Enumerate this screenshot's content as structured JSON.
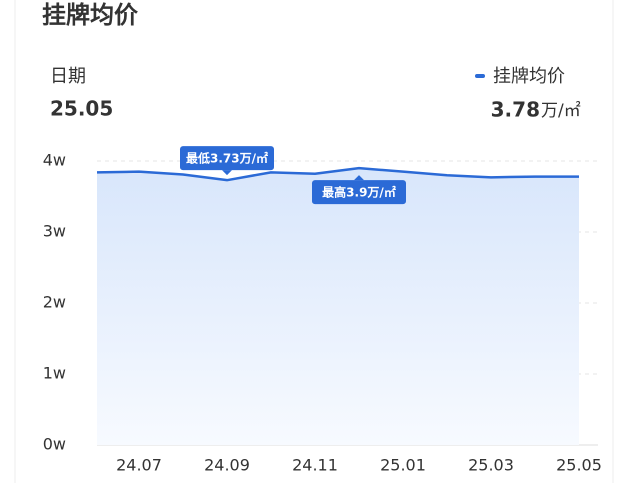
{
  "chart_data": {
    "type": "line",
    "title": "挂牌均价",
    "date_label": "日期",
    "date": "25.05",
    "current_value": 3.78,
    "unit": "万/㎡",
    "categories": [
      null,
      "24.07",
      null,
      "24.09",
      null,
      "24.11",
      null,
      "25.01",
      null,
      "25.03",
      null,
      "25.05"
    ],
    "series": [
      {
        "name": "挂牌均价",
        "color": "#2b6ad6",
        "values": [
          3.84,
          3.85,
          3.81,
          3.73,
          3.84,
          3.82,
          3.9,
          3.85,
          3.8,
          3.77,
          3.78,
          3.78
        ]
      }
    ],
    "annotations": [
      {
        "value": 3.73,
        "label": "最低3.73万/㎡"
      },
      {
        "value": 3.9,
        "label": "最高3.9万/㎡"
      }
    ],
    "ylim": [
      0,
      4
    ],
    "yticks": [
      {
        "value": 0,
        "label": "0w"
      },
      {
        "value": 1,
        "label": "1w"
      },
      {
        "value": 2,
        "label": "2w"
      },
      {
        "value": 3,
        "label": "3w"
      },
      {
        "value": 4,
        "label": "4w"
      }
    ],
    "grid": true
  }
}
